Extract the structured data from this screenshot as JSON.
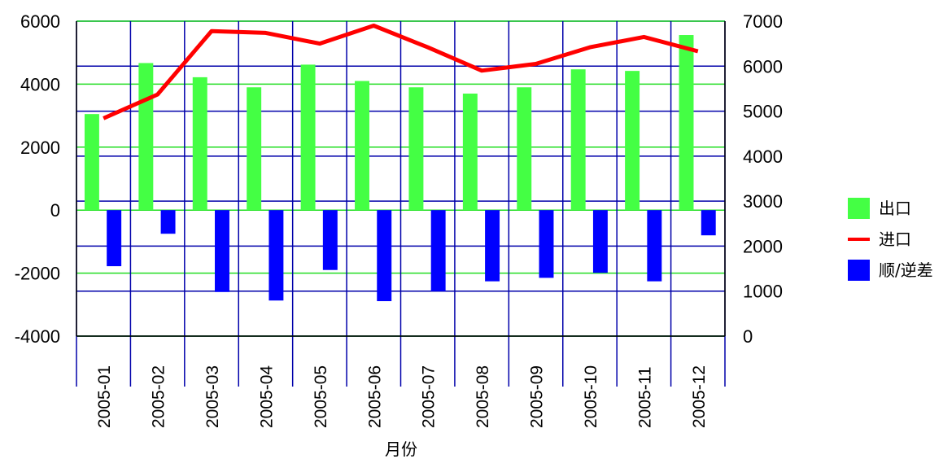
{
  "chart_data": {
    "type": "bar",
    "xlabel": "月份",
    "categories": [
      "2005-01",
      "2005-02",
      "2005-03",
      "2005-04",
      "2005-05",
      "2005-06",
      "2005-07",
      "2005-08",
      "2005-09",
      "2005-10",
      "2005-11",
      "2005-12"
    ],
    "left_axis": {
      "ylim": [
        -4000,
        6000
      ],
      "ticks": [
        -4000,
        -2000,
        0,
        2000,
        4000,
        6000
      ]
    },
    "right_axis": {
      "ylim": [
        0,
        7000
      ],
      "ticks": [
        0,
        1000,
        2000,
        3000,
        4000,
        5000,
        6000,
        7000
      ]
    },
    "grid": true,
    "legend_position": "right",
    "series": [
      {
        "name": "出口",
        "type": "bar",
        "axis": "left",
        "color": "#44ff44",
        "values": [
          3050,
          4670,
          4220,
          3900,
          4620,
          4100,
          3900,
          3700,
          3900,
          4470,
          4420,
          5560
        ]
      },
      {
        "name": "进口",
        "type": "line",
        "axis": "right",
        "color": "#ff0000",
        "values": [
          4840,
          5370,
          6780,
          6740,
          6500,
          6900,
          6420,
          5900,
          6050,
          6420,
          6650,
          6330
        ]
      },
      {
        "name": "顺/逆差",
        "type": "bar",
        "axis": "left",
        "color": "#0000ff",
        "values": [
          -1780,
          -750,
          -2600,
          -2870,
          -1900,
          -2890,
          -2570,
          -2260,
          -2150,
          -1990,
          -2260,
          -800
        ]
      }
    ]
  }
}
